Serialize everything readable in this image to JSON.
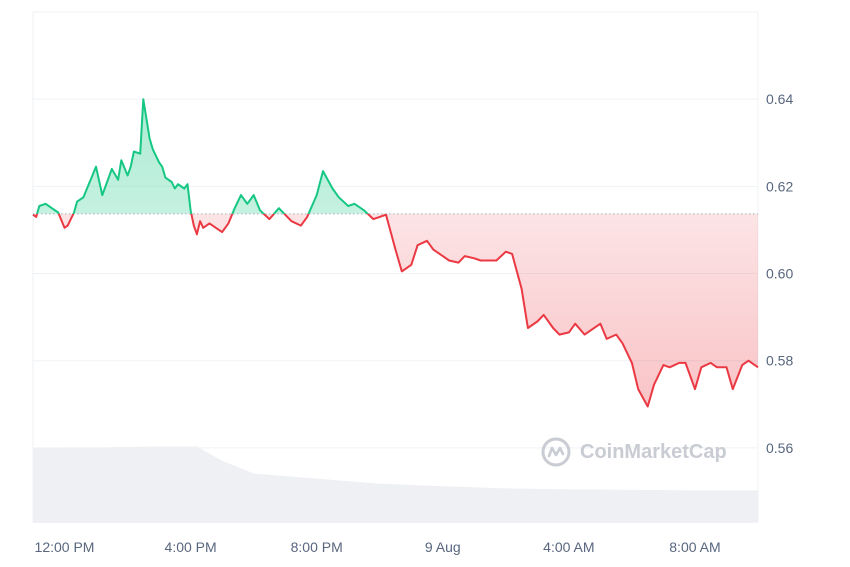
{
  "chart_data": {
    "type": "area",
    "ylim": [
      0.543,
      0.66
    ],
    "y_ticks": [
      "0.64",
      "0.62",
      "0.60",
      "0.58",
      "0.56"
    ],
    "y_tick_values": [
      0.64,
      0.62,
      0.6,
      0.58,
      0.56
    ],
    "x_ticks": [
      "12:00 PM",
      "4:00 PM",
      "8:00 PM",
      "9 Aug",
      "4:00 AM",
      "8:00 AM"
    ],
    "x_tick_hours": [
      12,
      16,
      20,
      24,
      28,
      32
    ],
    "x_range_hours": [
      11.0,
      34.0
    ],
    "baseline": 0.6137,
    "colors": {
      "up": "#16c784",
      "down": "#ea3943",
      "grid": "#eff2f5",
      "volume": "#eef0f3"
    },
    "series": [
      {
        "x_hours": [
          11.0,
          11.1,
          11.2,
          11.4,
          11.6,
          11.8,
          12.0,
          12.1,
          12.3,
          12.4,
          12.6,
          12.8,
          13.0,
          13.2,
          13.4,
          13.5,
          13.7,
          13.8,
          14.0,
          14.1,
          14.2,
          14.4,
          14.5,
          14.7,
          14.8,
          15.0,
          15.1,
          15.2,
          15.4,
          15.5,
          15.6,
          15.8,
          15.9,
          16.0,
          16.1,
          16.2,
          16.3,
          16.4,
          16.6,
          16.8,
          17.0,
          17.2,
          17.4,
          17.6,
          17.8,
          18.0,
          18.2,
          18.5,
          18.8,
          19.0,
          19.2,
          19.5,
          19.7,
          20.0,
          20.2,
          20.5,
          20.7,
          21.0,
          21.2,
          21.5,
          21.8,
          22.0,
          22.2,
          22.5,
          22.7,
          23.0,
          23.2,
          23.5,
          23.7,
          24.0,
          24.2,
          24.5,
          24.7,
          25.0,
          25.2,
          25.5,
          25.7,
          26.0,
          26.2,
          26.5,
          26.7,
          27.0,
          27.2,
          27.5,
          27.7,
          28.0,
          28.2,
          28.5,
          28.7,
          29.0,
          29.2,
          29.5,
          29.7,
          30.0,
          30.2,
          30.5,
          30.7,
          31.0,
          31.2,
          31.5,
          31.7,
          32.0,
          32.2,
          32.5,
          32.7,
          33.0,
          33.2,
          33.5,
          33.7,
          34.0
        ],
        "values": [
          0.6135,
          0.613,
          0.6155,
          0.616,
          0.615,
          0.614,
          0.6105,
          0.611,
          0.614,
          0.6165,
          0.6175,
          0.621,
          0.6245,
          0.618,
          0.622,
          0.624,
          0.6215,
          0.626,
          0.6225,
          0.6245,
          0.628,
          0.6275,
          0.64,
          0.631,
          0.6285,
          0.6255,
          0.6245,
          0.622,
          0.621,
          0.6195,
          0.6205,
          0.6195,
          0.6205,
          0.6145,
          0.611,
          0.609,
          0.612,
          0.6105,
          0.6115,
          0.6105,
          0.6095,
          0.6115,
          0.615,
          0.618,
          0.616,
          0.618,
          0.6145,
          0.6125,
          0.615,
          0.6135,
          0.612,
          0.611,
          0.613,
          0.618,
          0.6235,
          0.6195,
          0.6175,
          0.6155,
          0.616,
          0.6145,
          0.6125,
          0.613,
          0.6135,
          0.6055,
          0.6005,
          0.602,
          0.6065,
          0.6075,
          0.6055,
          0.604,
          0.603,
          0.6025,
          0.604,
          0.6035,
          0.603,
          0.603,
          0.603,
          0.605,
          0.6045,
          0.5965,
          0.5875,
          0.589,
          0.5905,
          0.5875,
          0.586,
          0.5865,
          0.5885,
          0.586,
          0.587,
          0.5885,
          0.585,
          0.586,
          0.584,
          0.5795,
          0.5735,
          0.5695,
          0.5745,
          0.579,
          0.5785,
          0.5795,
          0.5795,
          0.5735,
          0.5785,
          0.5795,
          0.5785,
          0.5785,
          0.5735,
          0.579,
          0.58,
          0.5785
        ]
      }
    ],
    "volume_fraction_x_hours": [
      11.0,
      13.0,
      15.0,
      16.2,
      17.0,
      18.0,
      20.0,
      22.0,
      24.0,
      26.0,
      28.0,
      30.0,
      32.0,
      34.0
    ],
    "volume_fraction": [
      0.145,
      0.146,
      0.148,
      0.148,
      0.12,
      0.095,
      0.085,
      0.075,
      0.07,
      0.066,
      0.064,
      0.063,
      0.062,
      0.062
    ]
  },
  "watermark": {
    "text": "CoinMarketCap"
  }
}
